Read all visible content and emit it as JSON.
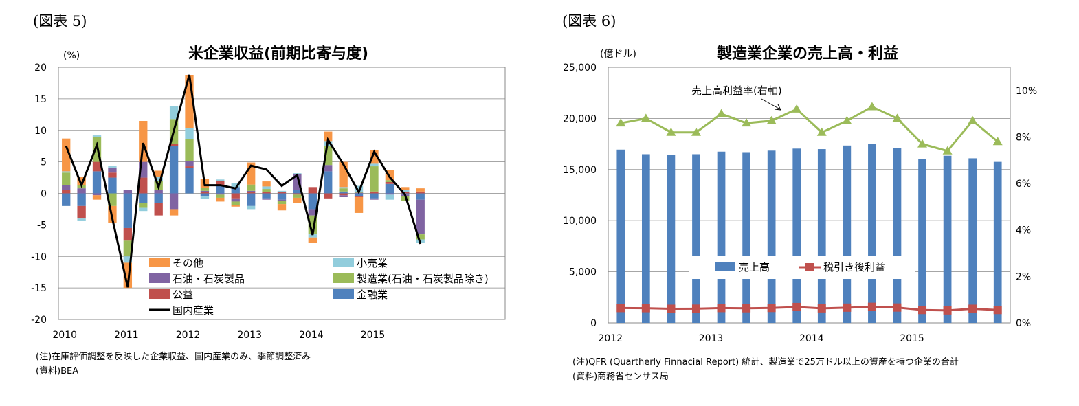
{
  "figures": [
    {
      "label": "(図表 5)",
      "title": "米企業収益(前期比寄与度)",
      "unit": "(%)",
      "note": "(注)在庫評価調整を反映した企業収益、国内産業のみ、季節調整済み",
      "source": "(資料)BEA"
    },
    {
      "label": "(図表 6)",
      "title": "製造業企業の売上高・利益",
      "unit": "(億ドル)",
      "note": "(注)QFR (Quartherly Finnacial Report) 統計、製造業で25万ドル以上の資産を持つ企業の合計",
      "source": "(資料)商務省センサス局"
    }
  ],
  "chart_data": [
    {
      "type": "bar",
      "stacked": true,
      "title": "米企業収益(前期比寄与度)",
      "ylabel": "(%)",
      "ylim": [
        -20,
        20
      ],
      "yticks": [
        "20",
        "15",
        "10",
        "5",
        "0",
        "-5",
        "-10",
        "-15",
        "-20"
      ],
      "x_tick_labels": [
        "2010",
        "2011",
        "2012",
        "2013",
        "2014",
        "2015"
      ],
      "categories": [
        "2010Q1",
        "2010Q2",
        "2010Q3",
        "2010Q4",
        "2011Q1",
        "2011Q2",
        "2011Q3",
        "2011Q4",
        "2012Q1",
        "2012Q2",
        "2012Q3",
        "2012Q4",
        "2013Q1",
        "2013Q2",
        "2013Q3",
        "2013Q4",
        "2014Q1",
        "2014Q2",
        "2014Q3",
        "2014Q4",
        "2015Q1",
        "2015Q2",
        "2015Q3",
        "2015Q4"
      ],
      "series": [
        {
          "name": "金融業",
          "color": "#4F81BD",
          "values": [
            -2.0,
            -2.0,
            3.5,
            2.5,
            -5.5,
            -1.5,
            -1.5,
            7.5,
            4.0,
            -0.5,
            1.2,
            1.0,
            -2.0,
            -0.8,
            -1.0,
            0.5,
            -2.5,
            3.5,
            0.3,
            -0.5,
            -0.8,
            1.5,
            -0.2,
            -1.0
          ]
        },
        {
          "name": "公益",
          "color": "#C0504D",
          "values": [
            0.5,
            -2.0,
            1.5,
            0.8,
            -2.0,
            2.5,
            -2.0,
            0.3,
            0.3,
            0.2,
            0.8,
            -0.8,
            0.2,
            0.2,
            0.2,
            -0.2,
            1.0,
            -0.8,
            -0.3,
            -0.1,
            0.3,
            0.3,
            0.2,
            0.3
          ]
        },
        {
          "name": "石油・石炭製品",
          "color": "#8064A2",
          "values": [
            0.8,
            0.8,
            -0.3,
            0.8,
            0.5,
            2.5,
            0.5,
            -2.5,
            0.8,
            0.2,
            -0.2,
            -0.5,
            0.2,
            -0.2,
            -0.2,
            2.5,
            -1.0,
            1.0,
            -0.3,
            0.1,
            -0.2,
            -0.2,
            -0.2,
            -5.5
          ]
        },
        {
          "name": "製造業(石油・石炭製品除き)",
          "color": "#9BBB59",
          "values": [
            2.0,
            0.5,
            4.0,
            -2.0,
            -2.5,
            -0.8,
            1.5,
            4.0,
            3.5,
            0.5,
            -0.5,
            -0.5,
            1.0,
            0.5,
            -0.5,
            -0.5,
            -3.0,
            3.0,
            0.5,
            0.1,
            4.0,
            0.3,
            -0.8,
            -0.8
          ]
        },
        {
          "name": "小売業",
          "color": "#92CDDC",
          "values": [
            0.2,
            -0.3,
            0.2,
            0.2,
            -1.0,
            -0.5,
            0.6,
            2.0,
            1.8,
            -0.4,
            0.2,
            0.6,
            -0.5,
            0.4,
            0.2,
            0.2,
            -0.5,
            0.8,
            0.2,
            1.0,
            0.4,
            -0.8,
            0.3,
            -0.5
          ]
        },
        {
          "name": "その他",
          "color": "#F79646",
          "values": [
            5.2,
            1.3,
            -0.7,
            -2.7,
            -4.0,
            6.5,
            1.0,
            -1.0,
            8.4,
            1.4,
            -0.6,
            -0.3,
            3.5,
            0.8,
            -1.0,
            -0.8,
            -0.8,
            1.5,
            4.0,
            -2.5,
            2.2,
            1.6,
            0.5,
            0.5
          ]
        }
      ],
      "line": {
        "name": "国内産業",
        "color": "#000000",
        "values": [
          7.5,
          1.3,
          7.7,
          -4.0,
          -14.9,
          8.0,
          1.0,
          10.0,
          18.8,
          1.3,
          1.3,
          0.8,
          4.4,
          3.8,
          1.2,
          2.9,
          -6.6,
          8.5,
          4.6,
          0.2,
          6.6,
          2.6,
          -0.2,
          -8.0
        ]
      },
      "legend": [
        "その他",
        "小売業",
        "石油・石炭製品",
        "製造業(石油・石炭製品除き)",
        "公益",
        "金融業",
        "国内産業"
      ]
    },
    {
      "type": "bar",
      "title": "製造業企業の売上高・利益",
      "ylabel": "(億ドル)",
      "ylim": [
        0,
        25000
      ],
      "y2lim": [
        0,
        11
      ],
      "yticks": [
        "25,000",
        "20,000",
        "15,000",
        "10,000",
        "5,000",
        "0"
      ],
      "y2ticks": [
        "10%",
        "8%",
        "6%",
        "4%",
        "2%",
        "0%"
      ],
      "x_tick_labels": [
        "2012",
        "2013",
        "2014",
        "2015"
      ],
      "categories": [
        "2012Q1",
        "2012Q2",
        "2012Q3",
        "2012Q4",
        "2013Q1",
        "2013Q2",
        "2013Q3",
        "2013Q4",
        "2014Q1",
        "2014Q2",
        "2014Q3",
        "2014Q4",
        "2015Q1",
        "2015Q2",
        "2015Q3",
        "2015Q4"
      ],
      "bars": {
        "name": "売上高",
        "color": "#4F81BD",
        "values": [
          16950,
          16500,
          16450,
          16500,
          16750,
          16700,
          16850,
          17050,
          17000,
          17350,
          17500,
          17100,
          16000,
          16350,
          16100,
          15750
        ]
      },
      "profit_line": {
        "name": "税引き後利益",
        "color": "#C0504D",
        "values": [
          1450,
          1440,
          1380,
          1390,
          1450,
          1430,
          1460,
          1550,
          1420,
          1490,
          1570,
          1500,
          1260,
          1220,
          1380,
          1260
        ]
      },
      "margin_line": {
        "name": "売上高利益率(右軸)",
        "color": "#9BBB59",
        "values": [
          8.6,
          8.8,
          8.2,
          8.2,
          9.0,
          8.6,
          8.7,
          9.2,
          8.2,
          8.7,
          9.3,
          8.8,
          7.7,
          7.4,
          8.7,
          7.8
        ]
      },
      "annotation": "売上高利益率(右軸)",
      "legend": [
        "売上高",
        "税引き後利益"
      ]
    }
  ]
}
